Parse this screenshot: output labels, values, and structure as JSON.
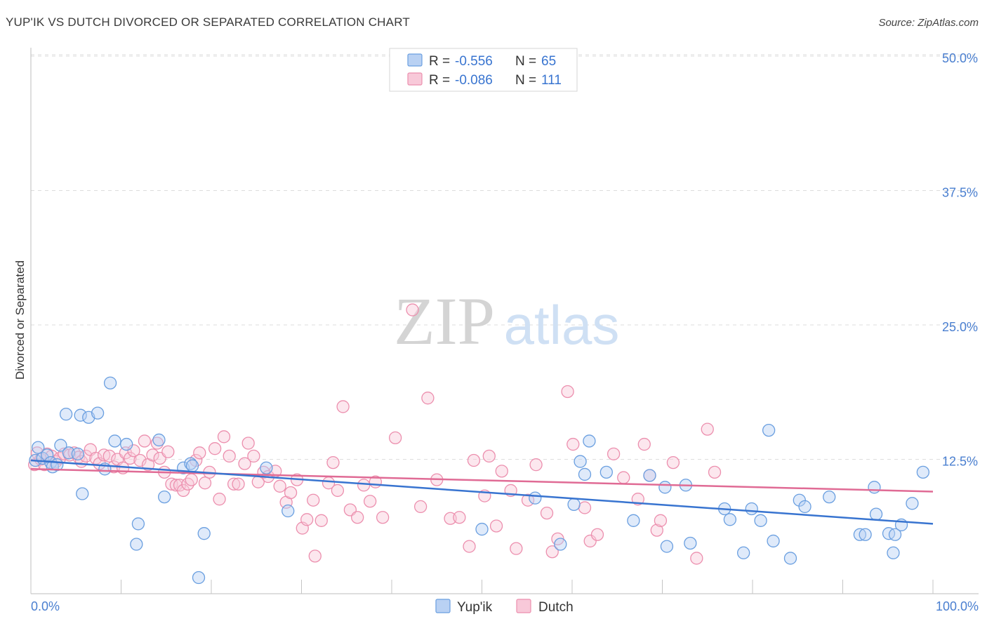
{
  "title": "YUP'IK VS DUTCH DIVORCED OR SEPARATED CORRELATION CHART",
  "source": "Source: ZipAtlas.com",
  "watermark": {
    "zip": "ZIP",
    "atlas": "atlas"
  },
  "colors": {
    "yupik": "#6a9fe0",
    "yupik_fill": "#b9d1f3",
    "yupik_line": "#3874d0",
    "dutch": "#ec8fae",
    "dutch_fill": "#f8c9d9",
    "dutch_line": "#e06b95",
    "tick_label": "#4a7fd0",
    "grid": "#dddddd"
  },
  "legend_top": {
    "rows": [
      {
        "r_label": "R =",
        "r_value": "-0.556",
        "n_label": "N =",
        "n_value": "65"
      },
      {
        "r_label": "R =",
        "r_value": "-0.086",
        "n_label": "N =",
        "n_value": "111"
      }
    ]
  },
  "legend_bottom": {
    "items": [
      "Yup'ik",
      "Dutch"
    ]
  },
  "chart_data": {
    "type": "scatter",
    "title": "YUP'IK VS DUTCH DIVORCED OR SEPARATED CORRELATION CHART",
    "xlabel": "",
    "ylabel": "Divorced or Separated",
    "xlim": [
      0,
      100
    ],
    "ylim": [
      0,
      50
    ],
    "x_tick_labels": [
      "0.0%",
      "100.0%"
    ],
    "y_ticks": [
      12.5,
      25.0,
      37.5,
      50.0
    ],
    "y_tick_labels": [
      "12.5%",
      "25.0%",
      "37.5%",
      "50.0%"
    ],
    "grid": true,
    "legend_position": "bottom",
    "series": [
      {
        "name": "Yup'ik",
        "r": -0.556,
        "n": 65,
        "trend": [
          [
            0,
            12.4
          ],
          [
            100,
            6.5
          ]
        ],
        "points": [
          [
            0.5,
            12.4
          ],
          [
            0.8,
            13.6
          ],
          [
            1.3,
            12.6
          ],
          [
            1.8,
            12.9
          ],
          [
            2.2,
            12.2
          ],
          [
            2.4,
            11.8
          ],
          [
            2.9,
            12.0
          ],
          [
            3.3,
            13.8
          ],
          [
            3.9,
            16.7
          ],
          [
            4.2,
            13.1
          ],
          [
            5.2,
            13.0
          ],
          [
            5.5,
            16.6
          ],
          [
            5.7,
            9.3
          ],
          [
            6.4,
            16.4
          ],
          [
            7.4,
            16.8
          ],
          [
            8.2,
            11.6
          ],
          [
            8.8,
            19.6
          ],
          [
            9.3,
            14.2
          ],
          [
            10.6,
            13.9
          ],
          [
            11.7,
            4.6
          ],
          [
            11.9,
            6.5
          ],
          [
            14.2,
            14.3
          ],
          [
            14.8,
            9.0
          ],
          [
            16.9,
            11.7
          ],
          [
            17.7,
            12.1
          ],
          [
            17.9,
            11.9
          ],
          [
            18.6,
            1.5
          ],
          [
            19.2,
            5.6
          ],
          [
            26.1,
            11.7
          ],
          [
            28.5,
            7.7
          ],
          [
            50.0,
            6.0
          ],
          [
            55.9,
            8.9
          ],
          [
            58.7,
            4.6
          ],
          [
            60.2,
            8.3
          ],
          [
            60.9,
            12.3
          ],
          [
            61.4,
            11.1
          ],
          [
            61.9,
            14.2
          ],
          [
            63.8,
            11.3
          ],
          [
            66.8,
            6.8
          ],
          [
            68.6,
            11.0
          ],
          [
            70.3,
            9.9
          ],
          [
            70.5,
            4.4
          ],
          [
            72.6,
            10.1
          ],
          [
            73.1,
            4.7
          ],
          [
            76.9,
            7.9
          ],
          [
            77.5,
            6.9
          ],
          [
            79.0,
            3.8
          ],
          [
            79.9,
            7.9
          ],
          [
            80.9,
            6.8
          ],
          [
            81.8,
            15.2
          ],
          [
            82.3,
            4.9
          ],
          [
            84.2,
            3.3
          ],
          [
            85.2,
            8.7
          ],
          [
            85.8,
            8.1
          ],
          [
            88.5,
            9.0
          ],
          [
            91.9,
            5.5
          ],
          [
            92.5,
            5.5
          ],
          [
            93.5,
            9.9
          ],
          [
            93.7,
            7.4
          ],
          [
            95.1,
            5.6
          ],
          [
            95.6,
            3.8
          ],
          [
            95.8,
            5.5
          ],
          [
            96.5,
            6.4
          ],
          [
            97.7,
            8.4
          ],
          [
            98.9,
            11.3
          ]
        ]
      },
      {
        "name": "Dutch",
        "r": -0.086,
        "n": 111,
        "trend": [
          [
            0,
            11.6
          ],
          [
            100,
            9.5
          ]
        ],
        "points": [
          [
            0.4,
            12.0
          ],
          [
            0.7,
            13.1
          ],
          [
            1.1,
            12.5
          ],
          [
            1.5,
            12.0
          ],
          [
            1.8,
            13.0
          ],
          [
            2.3,
            12.8
          ],
          [
            2.8,
            12.3
          ],
          [
            3.2,
            12.6
          ],
          [
            3.7,
            13.0
          ],
          [
            4.3,
            12.9
          ],
          [
            4.8,
            13.1
          ],
          [
            5.3,
            12.7
          ],
          [
            5.6,
            12.3
          ],
          [
            6.1,
            12.8
          ],
          [
            6.6,
            13.4
          ],
          [
            7.2,
            12.6
          ],
          [
            7.6,
            12.1
          ],
          [
            8.1,
            12.9
          ],
          [
            8.7,
            12.8
          ],
          [
            9.2,
            11.8
          ],
          [
            9.6,
            12.5
          ],
          [
            10.2,
            11.7
          ],
          [
            10.5,
            13.1
          ],
          [
            11.0,
            12.6
          ],
          [
            11.4,
            13.3
          ],
          [
            12.1,
            12.4
          ],
          [
            12.6,
            14.2
          ],
          [
            13.0,
            12.0
          ],
          [
            13.5,
            12.9
          ],
          [
            14.0,
            14.0
          ],
          [
            14.3,
            12.6
          ],
          [
            14.8,
            11.3
          ],
          [
            15.2,
            13.2
          ],
          [
            15.6,
            10.2
          ],
          [
            16.1,
            10.1
          ],
          [
            16.5,
            10.1
          ],
          [
            16.9,
            9.6
          ],
          [
            17.4,
            10.2
          ],
          [
            17.8,
            10.6
          ],
          [
            18.3,
            12.4
          ],
          [
            18.7,
            13.1
          ],
          [
            19.3,
            10.3
          ],
          [
            19.8,
            11.3
          ],
          [
            20.4,
            13.5
          ],
          [
            20.9,
            8.8
          ],
          [
            21.4,
            14.6
          ],
          [
            22.0,
            12.8
          ],
          [
            22.5,
            10.2
          ],
          [
            23.0,
            10.2
          ],
          [
            23.7,
            12.1
          ],
          [
            24.1,
            14.0
          ],
          [
            24.7,
            12.8
          ],
          [
            25.2,
            10.4
          ],
          [
            25.8,
            11.3
          ],
          [
            26.3,
            10.9
          ],
          [
            27.1,
            11.4
          ],
          [
            27.6,
            10.0
          ],
          [
            28.3,
            8.5
          ],
          [
            28.8,
            9.4
          ],
          [
            29.5,
            10.6
          ],
          [
            30.1,
            6.1
          ],
          [
            30.6,
            6.9
          ],
          [
            31.3,
            8.7
          ],
          [
            31.5,
            3.5
          ],
          [
            32.2,
            6.8
          ],
          [
            33.0,
            10.3
          ],
          [
            33.5,
            12.2
          ],
          [
            34.0,
            9.6
          ],
          [
            34.6,
            17.4
          ],
          [
            35.4,
            7.8
          ],
          [
            36.2,
            7.1
          ],
          [
            36.9,
            10.1
          ],
          [
            37.6,
            8.6
          ],
          [
            38.2,
            10.4
          ],
          [
            39.0,
            7.1
          ],
          [
            40.4,
            14.5
          ],
          [
            42.3,
            26.4
          ],
          [
            43.2,
            8.1
          ],
          [
            44.0,
            18.2
          ],
          [
            45.0,
            10.6
          ],
          [
            46.5,
            7.0
          ],
          [
            47.5,
            7.1
          ],
          [
            48.6,
            4.4
          ],
          [
            49.1,
            12.4
          ],
          [
            50.3,
            9.1
          ],
          [
            50.8,
            12.8
          ],
          [
            51.6,
            6.3
          ],
          [
            52.2,
            11.4
          ],
          [
            53.2,
            9.6
          ],
          [
            53.8,
            4.2
          ],
          [
            55.1,
            8.7
          ],
          [
            56.0,
            12.0
          ],
          [
            57.2,
            7.5
          ],
          [
            57.8,
            3.9
          ],
          [
            58.4,
            5.1
          ],
          [
            59.5,
            18.8
          ],
          [
            60.1,
            13.9
          ],
          [
            61.4,
            8.0
          ],
          [
            62.0,
            4.9
          ],
          [
            62.8,
            5.5
          ],
          [
            64.6,
            13.0
          ],
          [
            65.7,
            10.8
          ],
          [
            67.3,
            8.8
          ],
          [
            68.0,
            13.9
          ],
          [
            68.6,
            11.0
          ],
          [
            69.4,
            5.9
          ],
          [
            69.8,
            6.8
          ],
          [
            71.2,
            12.2
          ],
          [
            73.8,
            3.3
          ],
          [
            75.0,
            15.3
          ],
          [
            75.8,
            11.3
          ]
        ]
      }
    ]
  }
}
